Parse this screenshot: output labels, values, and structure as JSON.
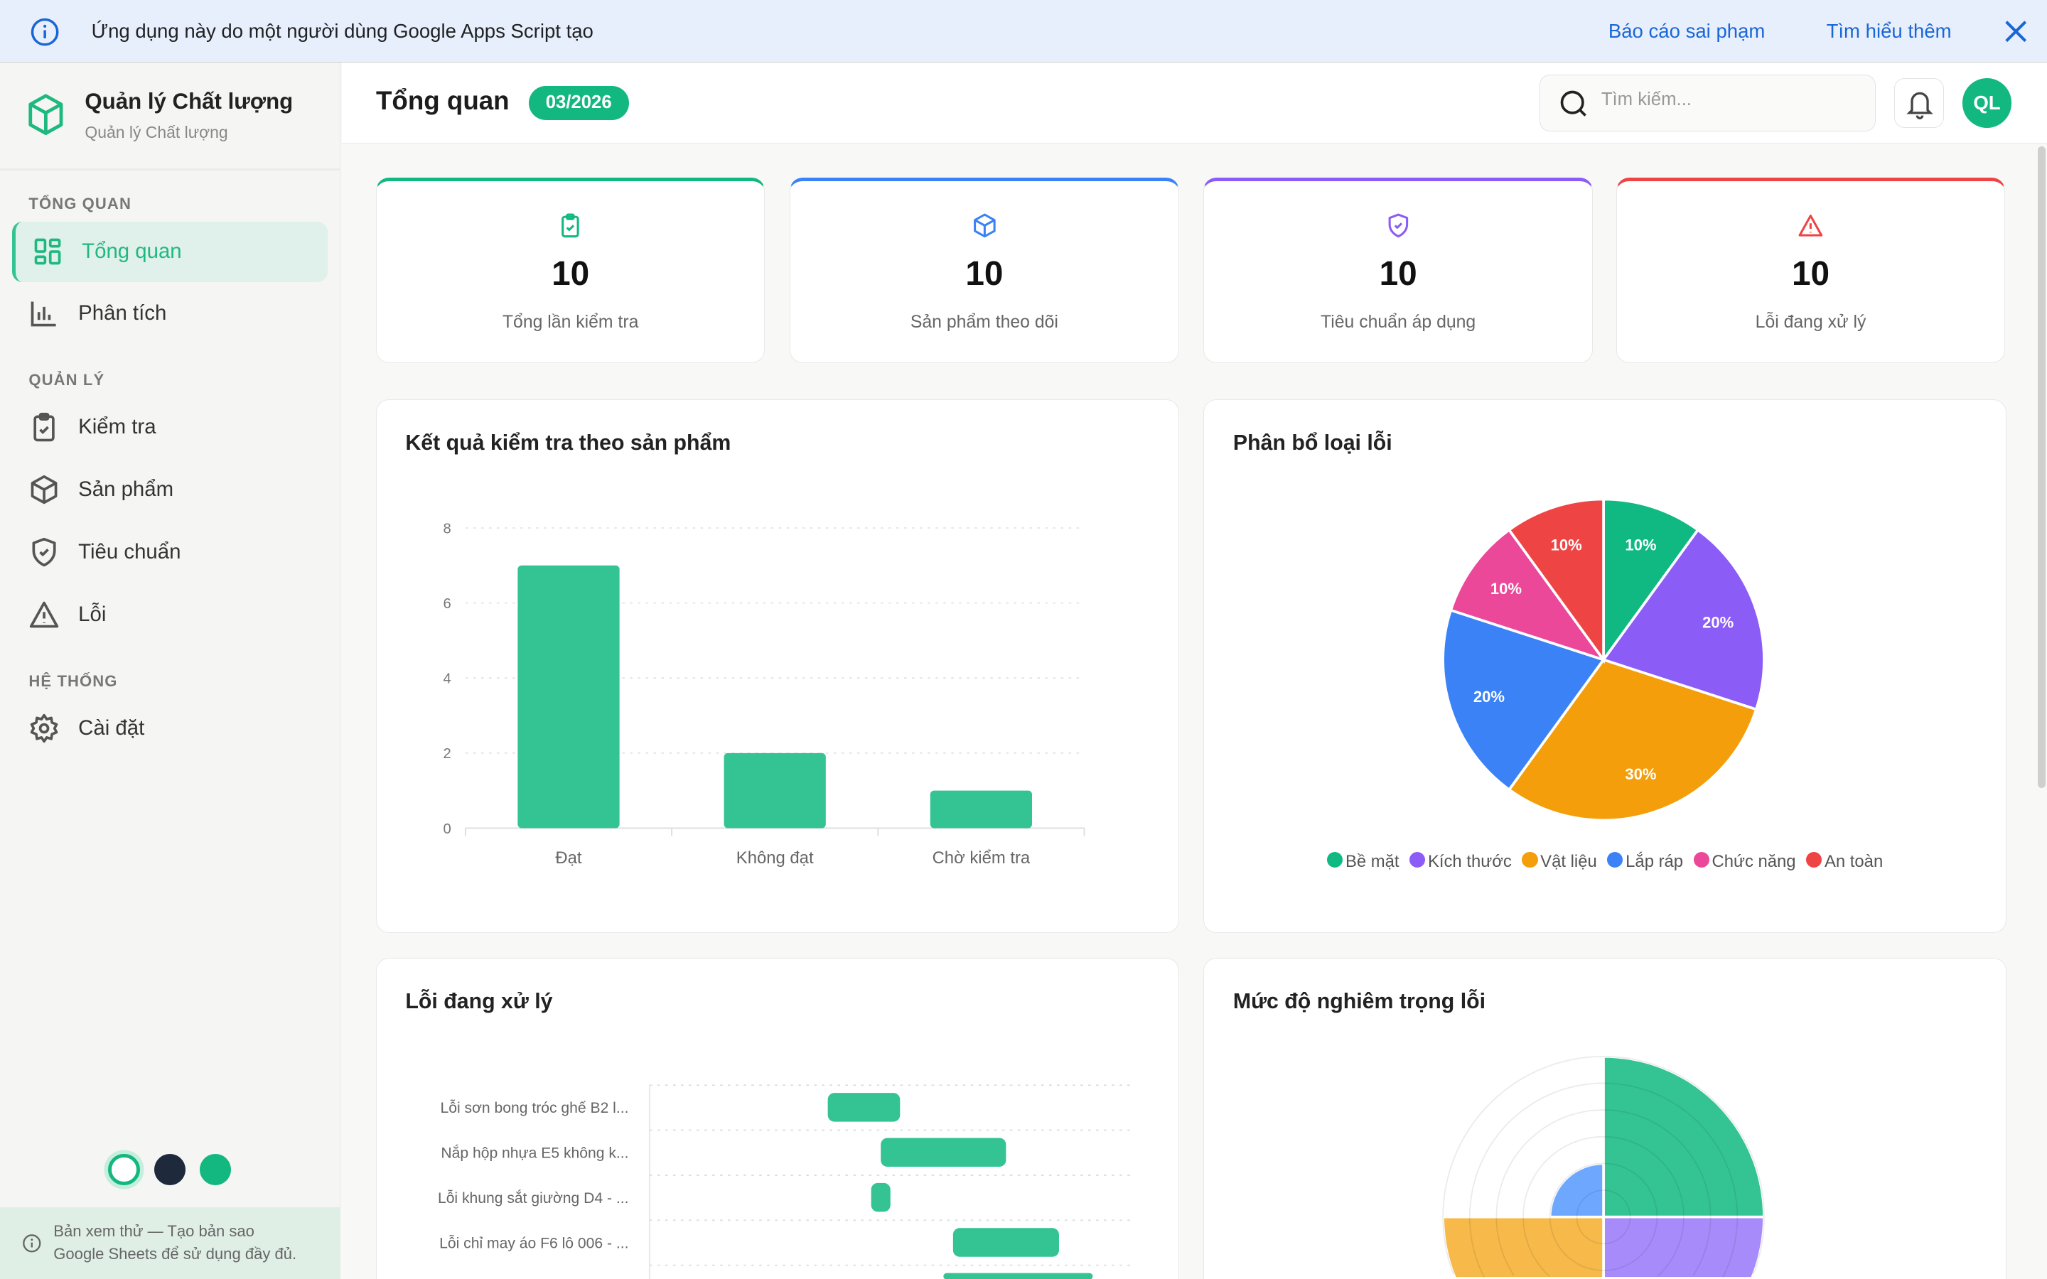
{
  "banner": {
    "message": "Ứng dụng này do một người dùng Google Apps Script tạo",
    "report_link": "Báo cáo sai phạm",
    "learn_link": "Tìm hiểu thêm"
  },
  "brand": {
    "title": "Quản lý Chất lượng",
    "subtitle": "Quản lý Chất lượng"
  },
  "sidebar": {
    "sections": [
      "TỔNG QUAN",
      "QUẢN LÝ",
      "HỆ THỐNG"
    ],
    "items": [
      {
        "label": "Tổng quan",
        "icon": "dashboard-grid-icon",
        "active": true
      },
      {
        "label": "Phân tích",
        "icon": "bar-chart-icon"
      },
      {
        "label": "Kiểm tra",
        "icon": "clipboard-check-icon"
      },
      {
        "label": "Sản phẩm",
        "icon": "box-icon"
      },
      {
        "label": "Tiêu chuẩn",
        "icon": "shield-check-icon"
      },
      {
        "label": "Lỗi",
        "icon": "warning-triangle-icon"
      },
      {
        "label": "Cài đặt",
        "icon": "gear-icon"
      }
    ],
    "themes": [
      {
        "color": "#ffffff",
        "selected": true
      },
      {
        "color": "#1e293b"
      },
      {
        "color": "#10b981"
      }
    ],
    "footer_line1": "Bản xem thử — Tạo bản sao",
    "footer_line2": "Google Sheets để sử dụng đầy đủ."
  },
  "header": {
    "title": "Tổng quan",
    "period_badge": "03/2026",
    "search_placeholder": "Tìm kiếm...",
    "avatar_initials": "QL"
  },
  "stats": [
    {
      "value": "10",
      "label": "Tổng lần kiểm tra",
      "icon": "clipboard-check-icon",
      "color": "#10b981"
    },
    {
      "value": "10",
      "label": "Sản phẩm theo dõi",
      "icon": "box-icon",
      "color": "#3b82f6"
    },
    {
      "value": "10",
      "label": "Tiêu chuẩn áp dụng",
      "icon": "shield-check-icon",
      "color": "#8b5cf6"
    },
    {
      "value": "10",
      "label": "Lỗi đang xử lý",
      "icon": "warning-triangle-icon",
      "color": "#ef4444"
    }
  ],
  "chart_data": [
    {
      "title": "Kết quả kiểm tra theo sản phẩm",
      "type": "bar",
      "categories": [
        "Đạt",
        "Không đạt",
        "Chờ kiểm tra"
      ],
      "values": [
        7,
        2,
        1
      ],
      "ylim": [
        0,
        8
      ],
      "yticks": [
        "0",
        "2",
        "4",
        "6",
        "8"
      ],
      "grid": true,
      "color": "#34c493"
    },
    {
      "title": "Phân bổ loại lỗi",
      "type": "pie",
      "categories": [
        "Bề mặt",
        "Kích thước",
        "Vật liệu",
        "Lắp ráp",
        "Chức năng",
        "An toàn"
      ],
      "values": [
        10,
        20,
        30,
        20,
        10,
        10
      ],
      "labels": [
        "10%",
        "20%",
        "30%",
        "20%",
        "10%",
        "10%"
      ],
      "colors": [
        "#10b981",
        "#8b5cf6",
        "#f59e0b",
        "#3b82f6",
        "#ec4899",
        "#ef4444"
      ],
      "legend": "bottom"
    },
    {
      "title": "Lỗi đang xử lý",
      "type": "bar",
      "orientation": "horizontal-floating",
      "categories": [
        "Lỗi sơn bong tróc ghế B2 l...",
        "Nắp hộp nhựa E5 không k...",
        "Lỗi khung sắt giường D4 - ...",
        "Lỗi chỉ may áo F6 lô 006 - ...",
        ""
      ],
      "ranges": [
        [
          37,
          52
        ],
        [
          48,
          74
        ],
        [
          46,
          50
        ],
        [
          63,
          85
        ],
        [
          61,
          92
        ]
      ],
      "xlim": [
        0,
        100
      ],
      "grid": true,
      "color": "#34c493"
    },
    {
      "title": "Mức độ nghiêm trọng lỗi",
      "type": "polarArea",
      "values": [
        3,
        3,
        3,
        1
      ],
      "colors": [
        "#34c493",
        "#a78bfa",
        "#f6b94a",
        "#6ea8fe"
      ],
      "rlim": [
        0,
        3
      ]
    }
  ]
}
